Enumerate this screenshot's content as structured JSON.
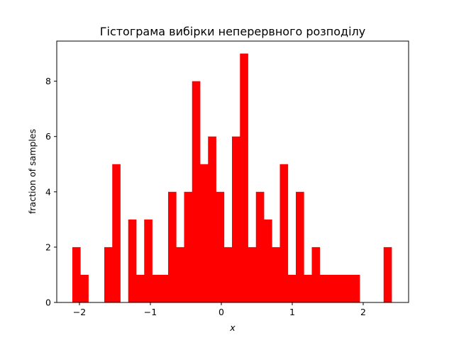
{
  "chart_data": {
    "type": "bar",
    "title": "Гістограма вибірки неперервного розподілу",
    "xlabel": "x",
    "ylabel": "fraction of samples",
    "xlim": [
      -2.32,
      2.64
    ],
    "ylim": [
      0,
      9.45
    ],
    "grid": false,
    "legend": "none",
    "bar_color": "#ff0000",
    "bin_width": 0.1125,
    "bin_starts": [
      -2.1,
      -1.9875,
      -1.875,
      -1.7625,
      -1.65,
      -1.5375,
      -1.425,
      -1.3125,
      -1.2,
      -1.0875,
      -0.975,
      -0.8625,
      -0.75,
      -0.6375,
      -0.525,
      -0.4125,
      -0.3,
      -0.1875,
      -0.075,
      0.0375,
      0.15,
      0.2625,
      0.375,
      0.4875,
      0.6,
      0.7125,
      0.825,
      0.9375,
      1.05,
      1.1625,
      1.275,
      1.3875,
      1.5,
      1.6125,
      1.725,
      1.8375,
      1.95,
      2.0625,
      2.175,
      2.2875
    ],
    "values": [
      2,
      1,
      0,
      0,
      2,
      5,
      0,
      3,
      1,
      3,
      1,
      1,
      4,
      2,
      4,
      8,
      5,
      6,
      4,
      2,
      6,
      9,
      2,
      4,
      3,
      2,
      5,
      1,
      4,
      1,
      2,
      1,
      1,
      1,
      1,
      1,
      0,
      0,
      0,
      2
    ],
    "x_ticks": [
      -2,
      -1,
      0,
      1,
      2
    ],
    "x_tick_labels": [
      "−2",
      "−1",
      "0",
      "1",
      "2"
    ],
    "y_ticks": [
      0,
      2,
      4,
      6,
      8
    ],
    "y_tick_labels": [
      "0",
      "2",
      "4",
      "6",
      "8"
    ]
  }
}
